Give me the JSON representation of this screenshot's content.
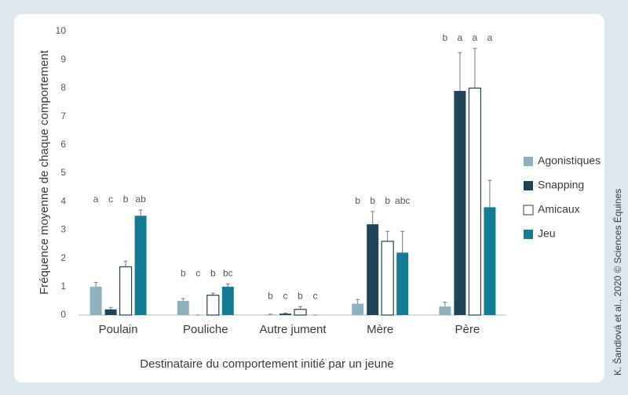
{
  "chart_data": {
    "type": "bar",
    "ylabel": "Fréquence moyenne de chaque comportement",
    "xlabel": "Destinataire du comportement initié par un jeune",
    "credit": "K. Šandlová et al., 2020 © Sciences Équines",
    "categories": [
      "Poulain",
      "Pouliche",
      "Autre jument",
      "Mère",
      "Père"
    ],
    "series": [
      {
        "name": "Agonistiques",
        "color": "#8fb1bd",
        "values": [
          1.0,
          0.5,
          0.02,
          0.4,
          0.3
        ],
        "errors": [
          0.15,
          0.08,
          0.01,
          0.15,
          0.15
        ],
        "letters": [
          "a",
          "b",
          "b",
          "b",
          "b"
        ]
      },
      {
        "name": "Snapping",
        "color": "#1f4456",
        "values": [
          0.2,
          0,
          0.05,
          3.2,
          7.9
        ],
        "errors": [
          0.07,
          0,
          0.02,
          0.45,
          1.35
        ],
        "letters": [
          "c",
          "c",
          "c",
          "b",
          "a"
        ]
      },
      {
        "name": "Amicaux",
        "color": "#ffffff",
        "values": [
          1.7,
          0.7,
          0.2,
          2.6,
          8.0
        ],
        "errors": [
          0.2,
          0.07,
          0.1,
          0.35,
          1.4
        ],
        "letters": [
          "b",
          "b",
          "b",
          "b",
          "a"
        ]
      },
      {
        "name": "Jeu",
        "color": "#137b93",
        "values": [
          3.5,
          1.0,
          0,
          2.2,
          3.8
        ],
        "errors": [
          0.2,
          0.1,
          0,
          0.75,
          0.95
        ],
        "letters": [
          "ab",
          "bc",
          "c",
          "abc",
          "a"
        ]
      }
    ],
    "ylim": [
      0,
      10
    ],
    "yticks": [
      0,
      1,
      2,
      3,
      4,
      5,
      6,
      7,
      8,
      9,
      10
    ],
    "grid": false,
    "legend": "right"
  }
}
